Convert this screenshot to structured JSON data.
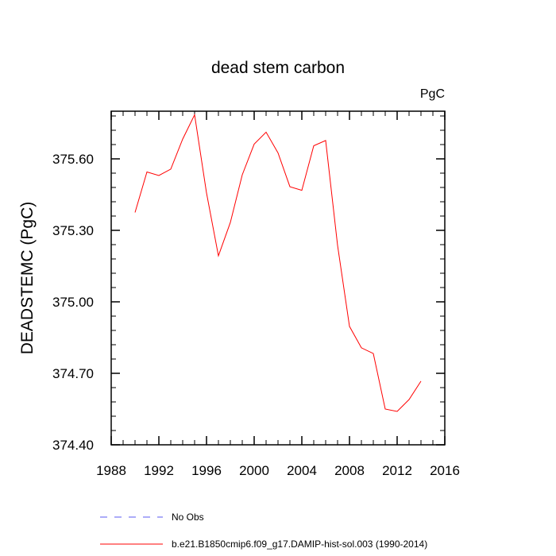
{
  "chart_data": {
    "type": "line",
    "title": "dead stem carbon",
    "units": "PgC",
    "ylabel": "DEADSTEMC  (PgC)",
    "xlabel": "",
    "xlim": [
      1988,
      2016
    ],
    "ylim": [
      374.4,
      375.8
    ],
    "xticks": [
      1988,
      1992,
      1996,
      2000,
      2004,
      2008,
      2012,
      2016
    ],
    "yticks": [
      375.6,
      375.3,
      375.0,
      374.7,
      374.4
    ],
    "ytick_labels": [
      "375.60",
      "375.30",
      "375.00",
      "374.70",
      "374.40"
    ],
    "grid": false,
    "legend_position": "bottom-left",
    "series": [
      {
        "name": "No Obs",
        "color": "#5a5af0",
        "dash": "dashed",
        "x": [],
        "values": []
      },
      {
        "name": "b.e21.B1850cmip6.f09_g17.DAMIP-hist-sol.003 (1990-2014)",
        "color": "#ff0000",
        "dash": "solid",
        "x": [
          1990,
          1991,
          1992,
          1993,
          1994,
          1995,
          1996,
          1997,
          1998,
          1999,
          2000,
          2001,
          2002,
          2003,
          2004,
          2005,
          2006,
          2007,
          2008,
          2009,
          2010,
          2011,
          2012,
          2013,
          2014
        ],
        "values": [
          375.375,
          375.545,
          375.53,
          375.557,
          375.683,
          375.785,
          375.457,
          375.193,
          375.333,
          375.533,
          375.662,
          375.712,
          375.625,
          375.483,
          375.468,
          375.655,
          375.677,
          375.237,
          374.897,
          374.807,
          374.783,
          374.55,
          374.54,
          374.59,
          374.667
        ]
      }
    ]
  }
}
